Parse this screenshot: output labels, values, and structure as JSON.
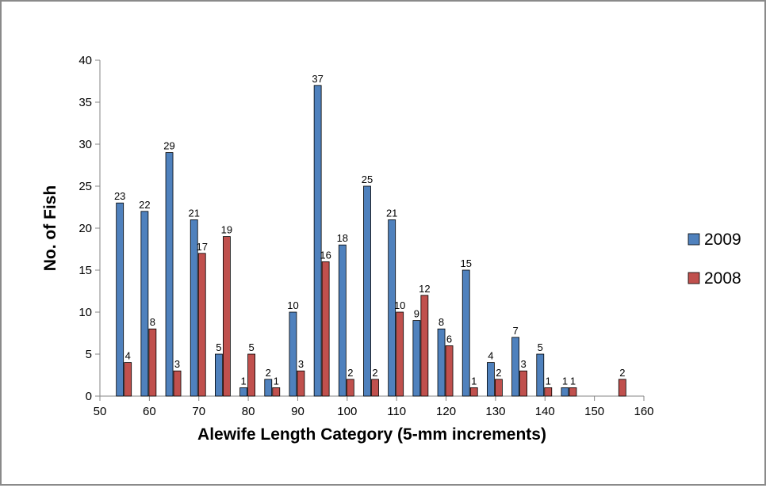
{
  "chart_data": {
    "type": "bar",
    "title": "",
    "xlabel": "Alewife Length Category (5-mm increments)",
    "ylabel": "No. of Fish",
    "xlim": [
      50,
      160
    ],
    "ylim": [
      0,
      40
    ],
    "x_ticks": [
      "50",
      "60",
      "70",
      "80",
      "90",
      "100",
      "110",
      "120",
      "130",
      "140",
      "150",
      "160"
    ],
    "y_ticks": [
      "0",
      "5",
      "10",
      "15",
      "20",
      "25",
      "30",
      "35",
      "40"
    ],
    "grid": false,
    "legend_position": "right",
    "categories": [
      55,
      60,
      65,
      70,
      75,
      80,
      85,
      90,
      95,
      100,
      105,
      110,
      115,
      120,
      125,
      130,
      135,
      140,
      145,
      150,
      155
    ],
    "series": [
      {
        "name": "2009",
        "color": "#4f81bd",
        "values": [
          23,
          22,
          29,
          21,
          5,
          1,
          2,
          10,
          37,
          18,
          25,
          21,
          9,
          8,
          15,
          4,
          7,
          5,
          1,
          null,
          null
        ],
        "labels": [
          "23",
          "22",
          "29",
          "21",
          "5",
          "1",
          "2",
          "10",
          "37",
          "18",
          "25",
          "21",
          "9",
          "8",
          "15",
          "4",
          "7",
          "5",
          "1",
          "",
          ""
        ]
      },
      {
        "name": "2008",
        "color": "#c0504d",
        "values": [
          4,
          8,
          3,
          17,
          19,
          5,
          1,
          3,
          16,
          2,
          2,
          10,
          12,
          6,
          1,
          2,
          3,
          1,
          1,
          null,
          2
        ],
        "labels": [
          "4",
          "8",
          "3",
          "17",
          "19",
          "5",
          "1",
          "3",
          "16",
          "2",
          "2",
          "10",
          "12",
          "6",
          "1",
          "2",
          "3",
          "1",
          "1",
          "",
          "2"
        ]
      }
    ]
  }
}
